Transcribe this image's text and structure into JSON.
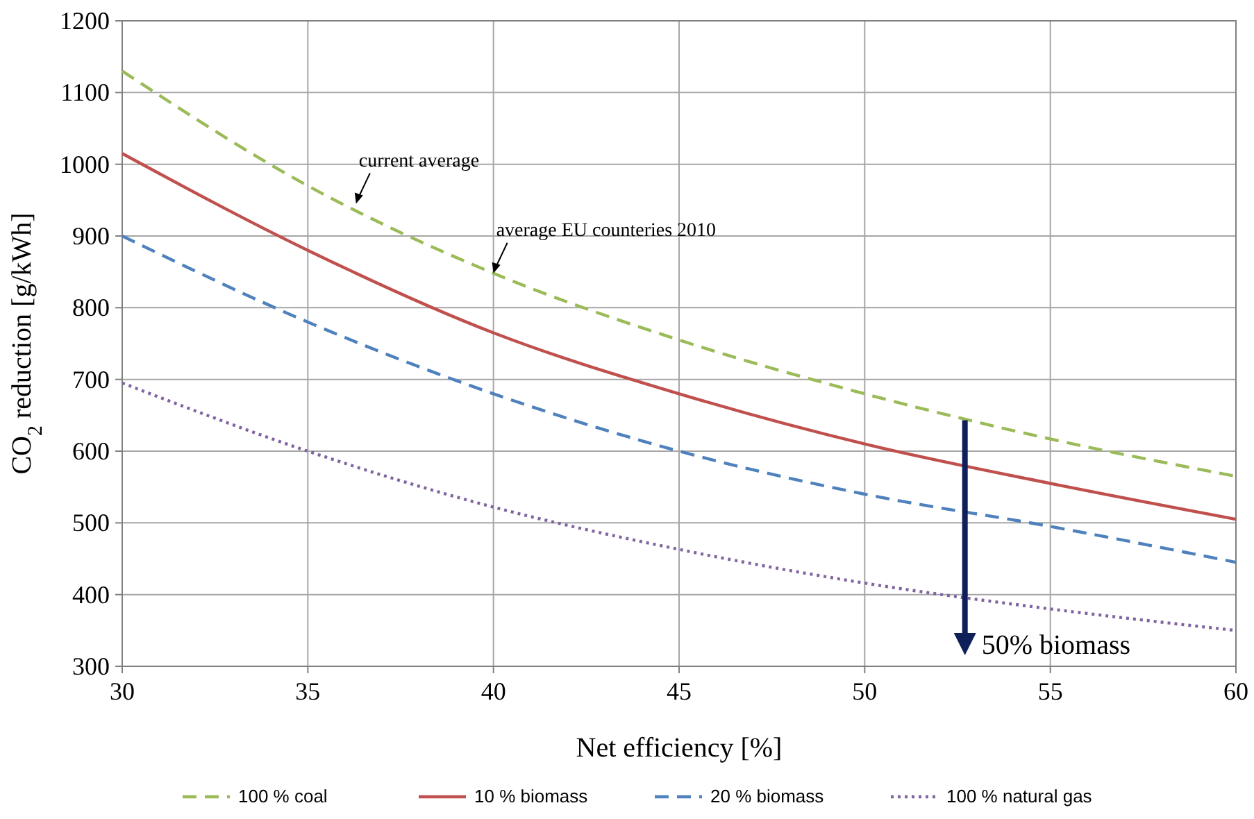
{
  "chart_data": {
    "type": "line",
    "xlabel": "Net efficiency [%]",
    "ylabel": "CO$_{2}$ reduction [g/kWh]",
    "x": [
      30,
      35,
      40,
      45,
      50,
      55,
      60
    ],
    "series": [
      {
        "name": "100 % coal",
        "color": "#9bbb59",
        "line_style": "dashed",
        "values": [
          1130,
          970,
          848,
          755,
          680,
          617,
          565
        ]
      },
      {
        "name": "10 % biomass",
        "color": "#c0504d",
        "line_style": "solid",
        "values": [
          1015,
          880,
          765,
          680,
          610,
          555,
          505
        ]
      },
      {
        "name": "20 % biomass",
        "color": "#4f81bd",
        "line_style": "dashed",
        "values": [
          900,
          780,
          680,
          600,
          540,
          495,
          445
        ]
      },
      {
        "name": "100 % natural gas",
        "color": "#8064a2",
        "line_style": "dotted",
        "values": [
          695,
          600,
          522,
          463,
          416,
          380,
          350
        ]
      }
    ],
    "xlim": [
      30,
      60
    ],
    "xticks": [
      30,
      35,
      40,
      45,
      50,
      55,
      60
    ],
    "ylim": [
      300,
      1200
    ],
    "yticks": [
      300,
      400,
      500,
      600,
      700,
      800,
      900,
      1000,
      1100,
      1200
    ],
    "grid": true,
    "legend": "bottom",
    "marker": "none",
    "annotations": [
      {
        "text": "current average",
        "x": 36.3,
        "y": 945
      },
      {
        "text": "average EU counteries 2010",
        "x": 40,
        "y": 848
      },
      {
        "text": "50% biomass",
        "x": 52.7,
        "y": 643
      }
    ]
  }
}
